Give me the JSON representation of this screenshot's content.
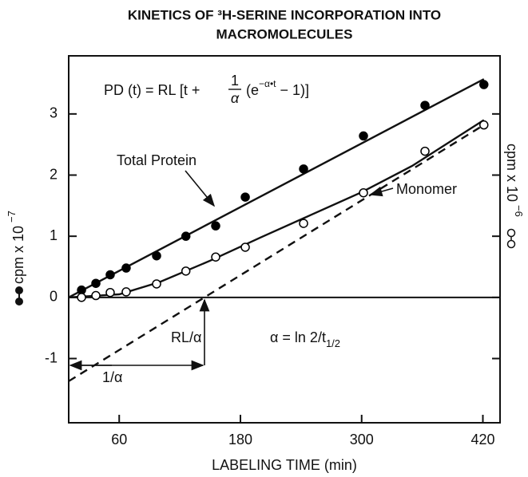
{
  "chart_data": {
    "type": "scatter",
    "title": [
      "KINETICS OF ³H-SERINE INCORPORATION INTO",
      "MACROMOLECULES"
    ],
    "x_label": "LABELING TIME (min)",
    "y_label": {
      "text": "cpm x 10",
      "exp": "−7"
    },
    "y2_label": {
      "text": "cpm x 10",
      "exp": "−6"
    },
    "xlim": [
      10,
      437
    ],
    "xticks": [
      60,
      180,
      300,
      420
    ],
    "ylim": [
      -2.05,
      3.95
    ],
    "yticks": [
      -1,
      0,
      1,
      2,
      3
    ],
    "grid": false,
    "series": [
      {
        "marker": "filled",
        "color": "#000000",
        "x": [
          22.7,
          36.9,
          51.1,
          66.9,
          97,
          126,
          155.5,
          184.8,
          242.5,
          301.8,
          362.7,
          421
        ],
        "values": [
          0.12,
          0.23,
          0.37,
          0.48,
          0.68,
          1.0,
          1.17,
          1.64,
          2.1,
          2.64,
          3.14,
          3.48
        ]
      },
      {
        "marker": "open",
        "color": "#000000",
        "x": [
          22.7,
          36.9,
          51.1,
          66.9,
          97,
          126,
          155.5,
          184.8,
          242.5,
          301.8,
          362.7,
          421
        ],
        "values": [
          0,
          0.03,
          0.08,
          0.09,
          0.22,
          0.43,
          0.66,
          0.82,
          1.21,
          1.71,
          2.39,
          2.82
        ]
      }
    ],
    "lines": [
      {
        "style": "solid",
        "x": [
          10,
          421
        ],
        "values": [
          0,
          3.57
        ]
      },
      {
        "style": "solid",
        "x": [
          10,
          60,
          100,
          150,
          200,
          250,
          300,
          350,
          421
        ],
        "values": [
          0,
          0.05,
          0.25,
          0.6,
          0.98,
          1.35,
          1.72,
          2.15,
          2.9
        ]
      },
      {
        "style": "dashed",
        "x": [
          10,
          421
        ],
        "values": [
          -1.37,
          2.82
        ]
      }
    ],
    "annotations": {
      "formula": {
        "left": "PD  (t) = RL [t +",
        "num": "1",
        "den": "α",
        "right": "(e",
        "exp": "−α•t",
        "end": " − 1)]"
      },
      "total_protein": "Total Protein",
      "monomer": "Monomer",
      "rl_alpha": "RL/α",
      "alpha_eq": {
        "text": "α  =  ln 2/t",
        "sub": "1/2"
      },
      "inv_alpha": "1/α"
    }
  }
}
